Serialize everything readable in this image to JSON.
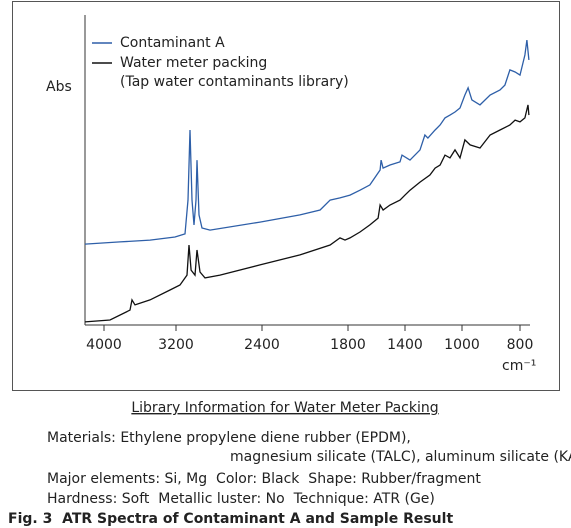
{
  "chart_data": {
    "type": "line",
    "xlabel": "cm⁻¹",
    "ylabel": "Abs",
    "xlim": [
      4150,
      765
    ],
    "ylim": [
      0,
      1
    ],
    "xticks": [
      4000,
      3200,
      2400,
      1800,
      1400,
      1000,
      800
    ],
    "series": [
      {
        "name": "Contaminant A",
        "color": "#2e5fa8",
        "x": [
          4150,
          3822,
          3489,
          3211,
          3116,
          3088,
          3070,
          3051,
          3033,
          3014,
          3005,
          2986,
          2958,
          2884,
          2419,
          2135,
          1995,
          1925,
          1856,
          1786,
          1716,
          1646,
          1575,
          1568,
          1554,
          1505,
          1435,
          1421,
          1365,
          1295,
          1260,
          1239,
          1189,
          1154,
          1119,
          1084,
          1049,
          1014,
          990,
          979,
          966,
          938,
          903,
          869,
          852,
          835,
          817,
          800,
          783,
          776,
          769
        ],
        "values": [
          0.261,
          0.268,
          0.274,
          0.284,
          0.294,
          0.403,
          0.629,
          0.403,
          0.323,
          0.403,
          0.532,
          0.355,
          0.313,
          0.306,
          0.332,
          0.355,
          0.371,
          0.403,
          0.41,
          0.419,
          0.435,
          0.452,
          0.5,
          0.532,
          0.506,
          0.516,
          0.526,
          0.548,
          0.532,
          0.565,
          0.613,
          0.603,
          0.629,
          0.645,
          0.668,
          0.677,
          0.687,
          0.7,
          0.742,
          0.765,
          0.726,
          0.71,
          0.742,
          0.758,
          0.774,
          0.823,
          0.816,
          0.806,
          0.871,
          0.919,
          0.855
        ]
      },
      {
        "name": "Water meter packing",
        "library": "(Tap water contaminants library)",
        "color": "#111111",
        "x": [
          4150,
          3933,
          3711,
          3689,
          3656,
          3489,
          3267,
          3163,
          3098,
          3079,
          3060,
          3023,
          3005,
          2977,
          2930,
          2791,
          2419,
          2135,
          1925,
          1856,
          1821,
          1786,
          1716,
          1646,
          1589,
          1575,
          1554,
          1505,
          1435,
          1400,
          1365,
          1295,
          1225,
          1189,
          1154,
          1119,
          1084,
          1049,
          1014,
          990,
          972,
          938,
          903,
          869,
          835,
          817,
          800,
          783,
          772,
          769
        ],
        "values": [
          0.01,
          0.016,
          0.048,
          0.081,
          0.065,
          0.081,
          0.113,
          0.129,
          0.161,
          0.258,
          0.177,
          0.161,
          0.242,
          0.171,
          0.152,
          0.161,
          0.194,
          0.226,
          0.258,
          0.281,
          0.274,
          0.281,
          0.3,
          0.323,
          0.345,
          0.387,
          0.371,
          0.387,
          0.403,
          0.419,
          0.435,
          0.461,
          0.484,
          0.506,
          0.516,
          0.548,
          0.539,
          0.565,
          0.539,
          0.597,
          0.581,
          0.571,
          0.613,
          0.629,
          0.645,
          0.661,
          0.655,
          0.668,
          0.71,
          0.677
        ]
      }
    ]
  },
  "info": {
    "title": "Library Information for Water Meter Packing",
    "lines": [
      "Materials: Ethylene propylene diene rubber (EPDM),",
      "magnesium silicate (TALC), aluminum silicate (KAOLIN).",
      "Major elements: Si, Mg  Color: Black  Shape: Rubber/fragment",
      "Hardness: Soft  Metallic luster: No  Technique: ATR (Ge)"
    ],
    "caption": "Fig. 3  ATR Spectra of Contaminant A and Sample Result"
  }
}
